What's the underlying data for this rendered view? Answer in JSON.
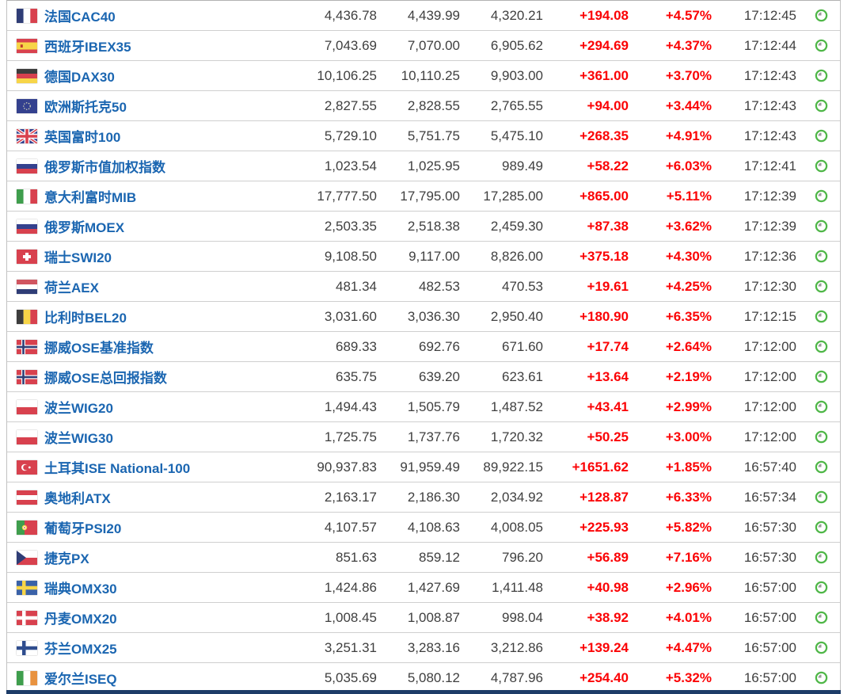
{
  "colors": {
    "index_name_blue": "#1b66b1",
    "value_text": "#3f3f3f",
    "up_change_red": "#fb0305",
    "time_text": "#3f3f3f",
    "clock_green": "#4fb748",
    "row_divider": "#cfcfcf",
    "table_border": "#c2c2c2",
    "bottom_bar_navy": "#1d3c68"
  },
  "flag_palette": {
    "navy": "#2f3d76",
    "blue": "#34418e",
    "sea": "#3a62a8",
    "fin_blue": "#2f4d8e",
    "red": "#d8414e",
    "soft_red": "#d05560",
    "dark_red": "#c0392b",
    "green": "#3f9e4d",
    "yellow": "#f7d548",
    "pale_yellow": "#f0eebc",
    "orange": "#e8923f",
    "dark": "#3d3d3d",
    "white": "#ffffff"
  },
  "icons": {
    "clock": "clock-icon",
    "flag": "country-flag-icon"
  },
  "table": {
    "rows": [
      {
        "flag": "fr",
        "name": "法国CAC40",
        "current": "4,436.78",
        "high": "4,439.99",
        "low": "4,320.21",
        "change": "+194.08",
        "change_pct": "+4.57%",
        "time": "17:12:45"
      },
      {
        "flag": "es",
        "name": "西班牙IBEX35",
        "current": "7,043.69",
        "high": "7,070.00",
        "low": "6,905.62",
        "change": "+294.69",
        "change_pct": "+4.37%",
        "time": "17:12:44"
      },
      {
        "flag": "de",
        "name": "德国DAX30",
        "current": "10,106.25",
        "high": "10,110.25",
        "low": "9,903.00",
        "change": "+361.00",
        "change_pct": "+3.70%",
        "time": "17:12:43"
      },
      {
        "flag": "eu",
        "name": "欧洲斯托克50",
        "current": "2,827.55",
        "high": "2,828.55",
        "low": "2,765.55",
        "change": "+94.00",
        "change_pct": "+3.44%",
        "time": "17:12:43"
      },
      {
        "flag": "gb",
        "name": "英国富时100",
        "current": "5,729.10",
        "high": "5,751.75",
        "low": "5,475.10",
        "change": "+268.35",
        "change_pct": "+4.91%",
        "time": "17:12:43"
      },
      {
        "flag": "ru",
        "name": "俄罗斯市值加权指数",
        "current": "1,023.54",
        "high": "1,025.95",
        "low": "989.49",
        "change": "+58.22",
        "change_pct": "+6.03%",
        "time": "17:12:41"
      },
      {
        "flag": "it",
        "name": "意大利富时MIB",
        "current": "17,777.50",
        "high": "17,795.00",
        "low": "17,285.00",
        "change": "+865.00",
        "change_pct": "+5.11%",
        "time": "17:12:39"
      },
      {
        "flag": "ru",
        "name": "俄罗斯MOEX",
        "current": "2,503.35",
        "high": "2,518.38",
        "low": "2,459.30",
        "change": "+87.38",
        "change_pct": "+3.62%",
        "time": "17:12:39"
      },
      {
        "flag": "ch",
        "name": "瑞士SWI20",
        "current": "9,108.50",
        "high": "9,117.00",
        "low": "8,826.00",
        "change": "+375.18",
        "change_pct": "+4.30%",
        "time": "17:12:36"
      },
      {
        "flag": "nl",
        "name": "荷兰AEX",
        "current": "481.34",
        "high": "482.53",
        "low": "470.53",
        "change": "+19.61",
        "change_pct": "+4.25%",
        "time": "17:12:30"
      },
      {
        "flag": "be",
        "name": "比利时BEL20",
        "current": "3,031.60",
        "high": "3,036.30",
        "low": "2,950.40",
        "change": "+180.90",
        "change_pct": "+6.35%",
        "time": "17:12:15"
      },
      {
        "flag": "no",
        "name": "挪威OSE基准指数",
        "current": "689.33",
        "high": "692.76",
        "low": "671.60",
        "change": "+17.74",
        "change_pct": "+2.64%",
        "time": "17:12:00"
      },
      {
        "flag": "no",
        "name": "挪威OSE总回报指数",
        "current": "635.75",
        "high": "639.20",
        "low": "623.61",
        "change": "+13.64",
        "change_pct": "+2.19%",
        "time": "17:12:00"
      },
      {
        "flag": "pl",
        "name": "波兰WIG20",
        "current": "1,494.43",
        "high": "1,505.79",
        "low": "1,487.52",
        "change": "+43.41",
        "change_pct": "+2.99%",
        "time": "17:12:00"
      },
      {
        "flag": "pl",
        "name": "波兰WIG30",
        "current": "1,725.75",
        "high": "1,737.76",
        "low": "1,720.32",
        "change": "+50.25",
        "change_pct": "+3.00%",
        "time": "17:12:00"
      },
      {
        "flag": "tr",
        "name": "土耳其ISE National-100",
        "current": "90,937.83",
        "high": "91,959.49",
        "low": "89,922.15",
        "change": "+1651.62",
        "change_pct": "+1.85%",
        "time": "16:57:40"
      },
      {
        "flag": "at",
        "name": "奥地利ATX",
        "current": "2,163.17",
        "high": "2,186.30",
        "low": "2,034.92",
        "change": "+128.87",
        "change_pct": "+6.33%",
        "time": "16:57:34"
      },
      {
        "flag": "pt",
        "name": "葡萄牙PSI20",
        "current": "4,107.57",
        "high": "4,108.63",
        "low": "4,008.05",
        "change": "+225.93",
        "change_pct": "+5.82%",
        "time": "16:57:30"
      },
      {
        "flag": "cz",
        "name": "捷克PX",
        "current": "851.63",
        "high": "859.12",
        "low": "796.20",
        "change": "+56.89",
        "change_pct": "+7.16%",
        "time": "16:57:30"
      },
      {
        "flag": "se",
        "name": "瑞典OMX30",
        "current": "1,424.86",
        "high": "1,427.69",
        "low": "1,411.48",
        "change": "+40.98",
        "change_pct": "+2.96%",
        "time": "16:57:00"
      },
      {
        "flag": "dk",
        "name": "丹麦OMX20",
        "current": "1,008.45",
        "high": "1,008.87",
        "low": "998.04",
        "change": "+38.92",
        "change_pct": "+4.01%",
        "time": "16:57:00"
      },
      {
        "flag": "fi",
        "name": "芬兰OMX25",
        "current": "3,251.31",
        "high": "3,283.16",
        "low": "3,212.86",
        "change": "+139.24",
        "change_pct": "+4.47%",
        "time": "16:57:00"
      },
      {
        "flag": "ie",
        "name": "爱尔兰ISEQ",
        "current": "5,035.69",
        "high": "5,080.12",
        "low": "4,787.96",
        "change": "+254.40",
        "change_pct": "+5.32%",
        "time": "16:57:00"
      }
    ]
  }
}
